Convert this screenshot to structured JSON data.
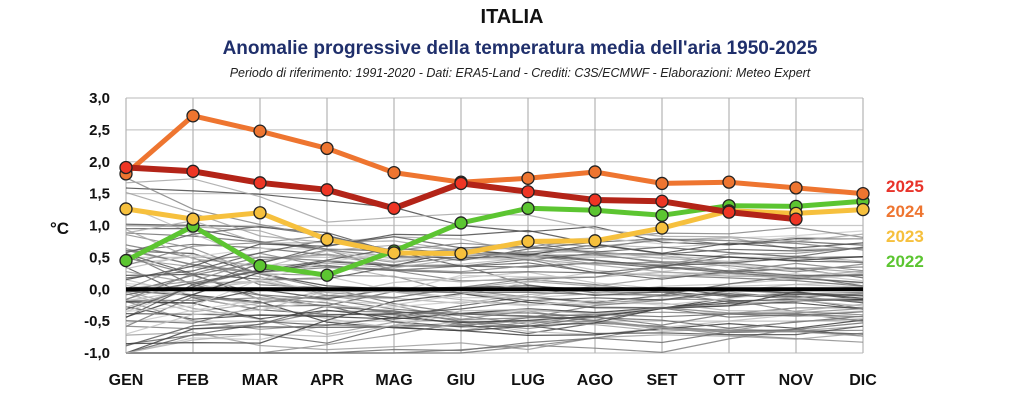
{
  "chart_data": {
    "type": "line",
    "title": "ITALIA",
    "subtitle": "Anomalie progressive della temperatura media dell'aria 1950-2025",
    "credits": "Periodo di riferimento: 1991-2020 - Dati: ERA5-Land - Crediti: C3S/ECMWF - Elaborazioni: Meteo Expert",
    "xlabel": "",
    "ylabel": "°C",
    "categories": [
      "GEN",
      "FEB",
      "MAR",
      "APR",
      "MAG",
      "GIU",
      "LUG",
      "AGO",
      "SET",
      "OTT",
      "NOV",
      "DIC"
    ],
    "ylim": [
      -1.0,
      3.0
    ],
    "yticks": [
      3.0,
      2.5,
      2.0,
      1.5,
      1.0,
      0.5,
      0.0,
      -0.5,
      -1.0
    ],
    "ytick_labels": [
      "3,0",
      "2,5",
      "2,0",
      "1,5",
      "1,0",
      "0,5",
      "0,0",
      "-0,5",
      "-1,0"
    ],
    "grid": true,
    "legend_position": "right",
    "zero_line": true,
    "background_series_note": "Altri anni 1950-2021 in grigio",
    "series": [
      {
        "name": "2022",
        "color": "#5cc531",
        "values": [
          0.45,
          0.99,
          0.37,
          0.22,
          0.6,
          1.04,
          1.27,
          1.24,
          1.16,
          1.31,
          1.3,
          1.38
        ]
      },
      {
        "name": "2023",
        "color": "#f6c03d",
        "values": [
          1.26,
          1.1,
          1.2,
          0.78,
          0.57,
          0.56,
          0.75,
          0.76,
          0.96,
          1.23,
          1.19,
          1.25
        ]
      },
      {
        "name": "2024",
        "color": "#ee7530",
        "values": [
          1.81,
          2.72,
          2.48,
          2.21,
          1.83,
          1.68,
          1.74,
          1.84,
          1.66,
          1.68,
          1.59,
          1.5
        ]
      },
      {
        "name": "2025",
        "color": "#b32418",
        "marker_color": "#ee3524",
        "values": [
          1.91,
          1.85,
          1.67,
          1.56,
          1.27,
          1.66,
          1.53,
          1.4,
          1.38,
          1.21,
          1.1,
          null
        ]
      }
    ],
    "legend": [
      {
        "label": "2025",
        "color": "#e8332a"
      },
      {
        "label": "2024",
        "color": "#ee7530"
      },
      {
        "label": "2023",
        "color": "#f6c03d"
      },
      {
        "label": "2022",
        "color": "#5cc531"
      }
    ]
  }
}
